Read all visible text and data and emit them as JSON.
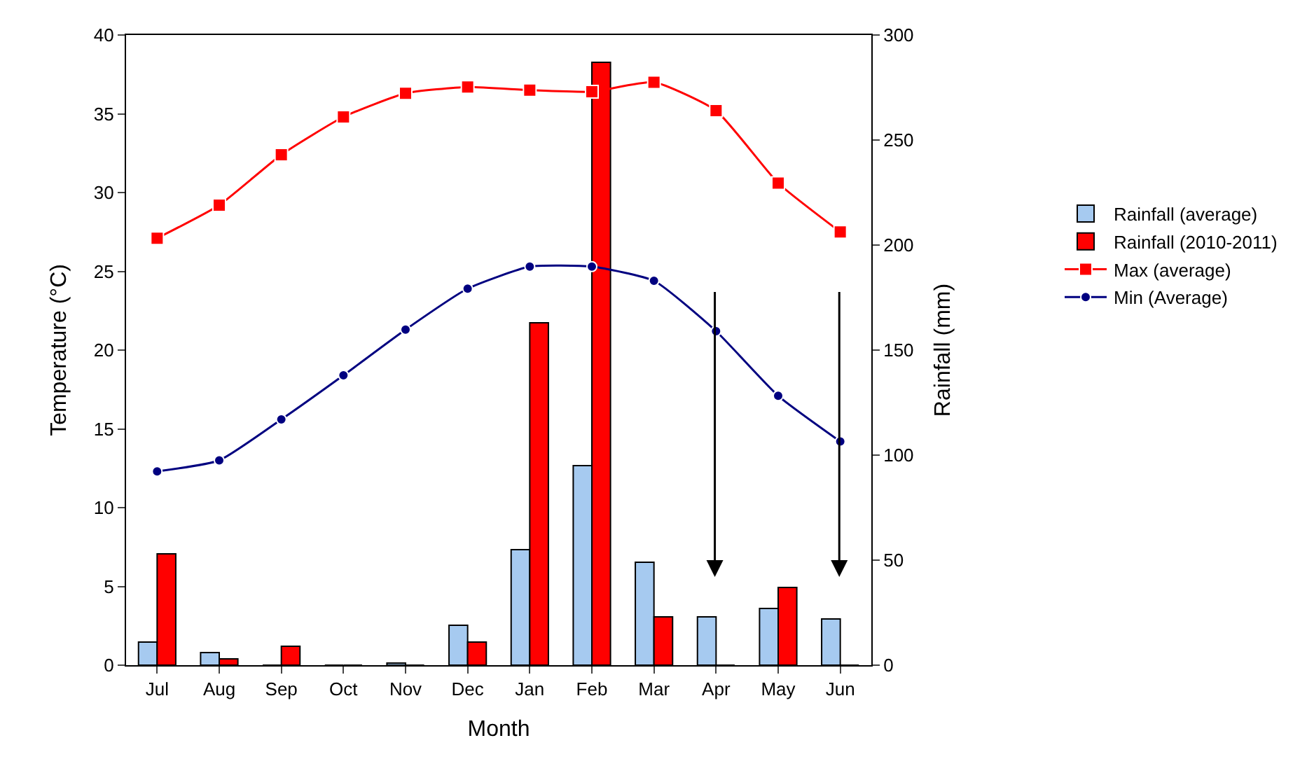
{
  "chart_data": {
    "type": "line",
    "xlabel": "Month",
    "ylabel": "Temperature (°C)",
    "y2label": "Rainfall (mm)",
    "categories": [
      "Jul",
      "Aug",
      "Sep",
      "Oct",
      "Nov",
      "Dec",
      "Jan",
      "Feb",
      "Mar",
      "Apr",
      "May",
      "Jun"
    ],
    "series": [
      {
        "name": "Rainfall (average)",
        "type": "bar",
        "axis": "y2",
        "color": "#a6caf0",
        "values": [
          11,
          6,
          0,
          0,
          1,
          19,
          55,
          95,
          49,
          23,
          27,
          22
        ]
      },
      {
        "name": "Rainfall (2010-2011)",
        "type": "bar",
        "axis": "y2",
        "color": "#ff0000",
        "values": [
          53,
          3,
          9,
          0,
          0,
          11,
          163,
          287,
          23,
          0,
          37,
          0
        ]
      },
      {
        "name": "Max (average)",
        "color": "#ff0000",
        "marker": "square",
        "values": [
          27.1,
          29.2,
          32.4,
          34.8,
          36.3,
          36.7,
          36.5,
          36.4,
          37.0,
          35.2,
          30.6,
          27.5
        ]
      },
      {
        "name": "Min (Average)",
        "color": "#000080",
        "marker": "circle",
        "values": [
          12.3,
          13.0,
          15.6,
          18.4,
          21.3,
          23.9,
          25.3,
          25.3,
          24.4,
          21.2,
          17.1,
          14.2
        ]
      }
    ],
    "ylim": [
      0,
      40
    ],
    "yticks": [
      0,
      5,
      10,
      15,
      20,
      25,
      30,
      35,
      40
    ],
    "y2lim": [
      0,
      300
    ],
    "y2ticks": [
      0,
      50,
      100,
      150,
      200,
      250,
      300
    ],
    "grid": false,
    "legend": "right"
  }
}
